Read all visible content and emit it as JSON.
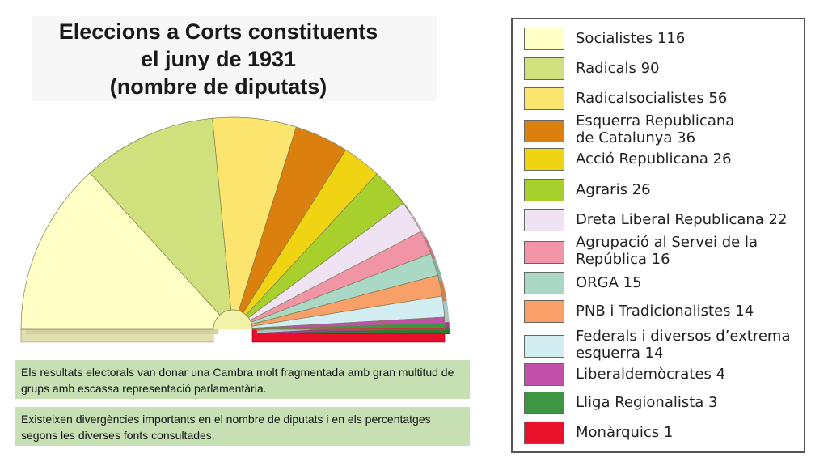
{
  "title": {
    "line1": "Eleccions a Corts constituents",
    "line2": "el juny de 1931",
    "line3": "(nombre de diputats)"
  },
  "notes": [
    "Els resultats electorals van donar una Cambra molt fragmentada amb gran multitud de grups amb escassa representació parlamentària.",
    "Existeixen divergències importants en el nombre de diputats i en els percentatges segons les diverses fonts consultades."
  ],
  "legend": [
    {
      "label": "Socialistes 116",
      "color": "#ffffc6"
    },
    {
      "label": "Radicals 90",
      "color": "#cfe07c"
    },
    {
      "label": "Radicalsocialistes 56",
      "color": "#fbe56e"
    },
    {
      "label": "Esquerra Republicana\nde Catalunya 36",
      "color": "#db800e"
    },
    {
      "label": "Acció Republicana 26",
      "color": "#f0d414"
    },
    {
      "label": "Agraris 26",
      "color": "#a8d02c"
    },
    {
      "label": "Dreta Liberal Republicana 22",
      "color": "#efe2f2"
    },
    {
      "label": "Agrupació al Servei de la\nRepública 16",
      "color": "#f194a6"
    },
    {
      "label": "ORGA 15",
      "color": "#a9d8c4"
    },
    {
      "label": "PNB i Tradicionalistes 14",
      "color": "#f9a068"
    },
    {
      "label": "Federals i diversos d’extrema\nesquerra 14",
      "color": "#d2eef3"
    },
    {
      "label": "Liberaldemòcrates 4",
      "color": "#c151a8"
    },
    {
      "label": "Lliga Regionalista 3",
      "color": "#3d9642"
    },
    {
      "label": "Monàrquics 1",
      "color": "#e8102a"
    }
  ],
  "chart_data": {
    "type": "pie",
    "title": "Eleccions a Corts constituents el juny de 1931 (nombre de diputats)",
    "subtype": "parliament-half-donut",
    "categories": [
      "Socialistes",
      "Radicals",
      "Radicalsocialistes",
      "Esquerra Republicana de Catalunya",
      "Acció Republicana",
      "Agraris",
      "Dreta Liberal Republicana",
      "Agrupació al Servei de la República",
      "ORGA",
      "PNB i Tradicionalistes",
      "Federals i diversos d’extrema esquerra",
      "Liberaldemòcrates",
      "Lliga Regionalista",
      "Monàrquics"
    ],
    "values": [
      116,
      90,
      56,
      36,
      26,
      26,
      22,
      16,
      15,
      14,
      14,
      4,
      3,
      1
    ],
    "colors": [
      "#ffffc6",
      "#cfe07c",
      "#fbe56e",
      "#db800e",
      "#f0d414",
      "#a8d02c",
      "#efe2f2",
      "#f194a6",
      "#a9d8c4",
      "#f9a068",
      "#d2eef3",
      "#c151a8",
      "#3d9642",
      "#e8102a"
    ],
    "legend_position": "right"
  }
}
